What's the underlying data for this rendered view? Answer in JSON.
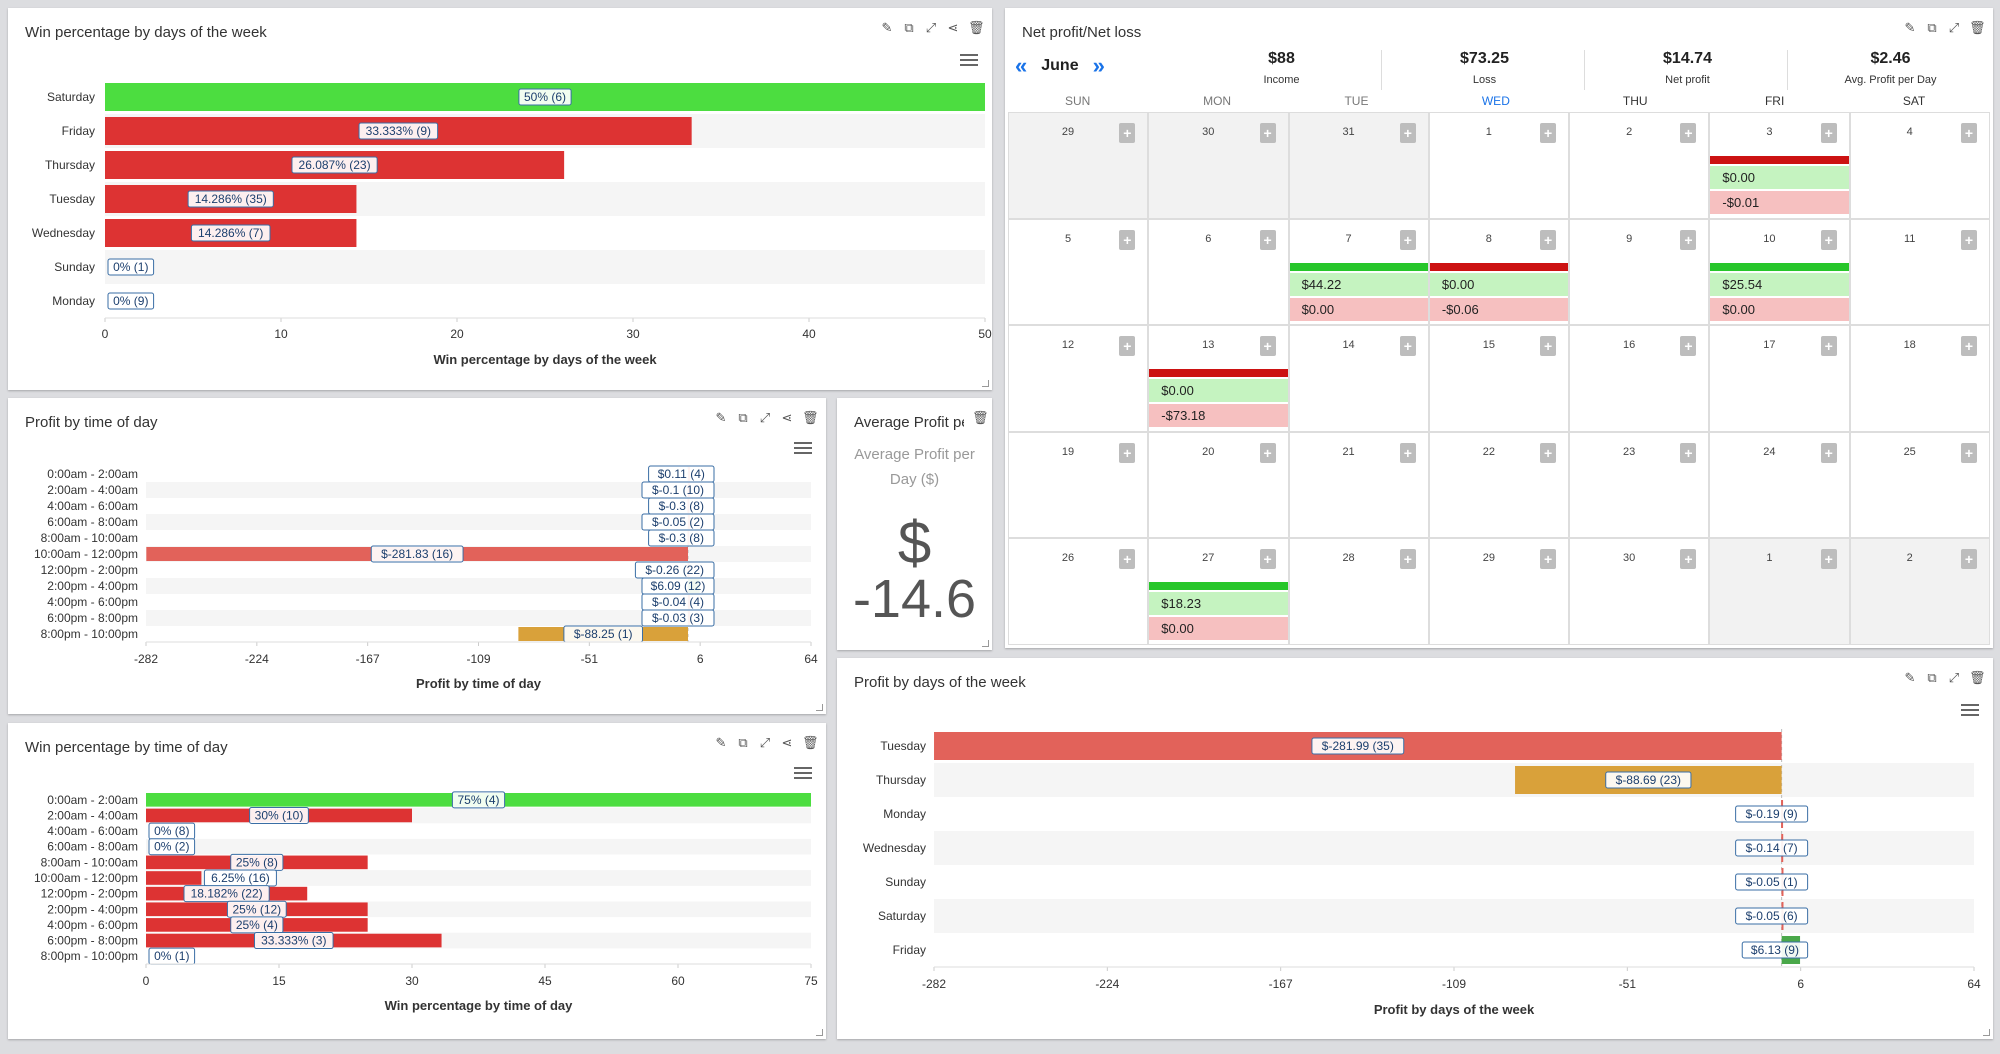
{
  "colors": {
    "win": "#4cdd40",
    "loss": "#dd3333",
    "orange": "#d9a13a",
    "salmon": "#e2625a",
    "green_small": "#4aa84a",
    "link": "#1a73e8"
  },
  "icons": [
    "pencil-icon",
    "copy-icon",
    "expand-icon",
    "share-icon",
    "trash-icon",
    "menu-icon",
    "add-note-icon",
    "double-chevron-left-icon",
    "double-chevron-right-icon"
  ],
  "panels": {
    "win_dow": {
      "title": "Win percentage by days of the week"
    },
    "net": {
      "title": "Net profit/Net loss"
    },
    "profit_tod": {
      "title": "Profit by time of day"
    },
    "avg": {
      "title": "Average Profit pe...",
      "label_line1": "Average Profit per",
      "label_line2": "Day ($)",
      "symbol": "$",
      "value": "-14.6"
    },
    "win_tod": {
      "title": "Win percentage by time of day"
    },
    "profit_dow": {
      "title": "Profit by days of the week"
    }
  },
  "calendar": {
    "month": "June",
    "summary": [
      {
        "value": "$88",
        "label": "Income"
      },
      {
        "value": "$73.25",
        "label": "Loss"
      },
      {
        "value": "$14.74",
        "label": "Net profit"
      },
      {
        "value": "$2.46",
        "label": "Avg. Profit per Day"
      }
    ],
    "dow": [
      "SUN",
      "MON",
      "TUE",
      "WED",
      "THU",
      "FRI",
      "SAT"
    ],
    "weeks": [
      [
        {
          "d": "29",
          "o": true
        },
        {
          "d": "30",
          "o": true
        },
        {
          "d": "31",
          "o": true
        },
        {
          "d": "1"
        },
        {
          "d": "2"
        },
        {
          "d": "3",
          "bar": "loss",
          "g": "$0.00",
          "r": "-$0.01"
        },
        {
          "d": "4"
        }
      ],
      [
        {
          "d": "5"
        },
        {
          "d": "6"
        },
        {
          "d": "7",
          "bar": "win",
          "g": "$44.22",
          "r": "$0.00"
        },
        {
          "d": "8",
          "bar": "loss",
          "g": "$0.00",
          "r": "-$0.06"
        },
        {
          "d": "9"
        },
        {
          "d": "10",
          "bar": "win",
          "g": "$25.54",
          "r": "$0.00"
        },
        {
          "d": "11"
        }
      ],
      [
        {
          "d": "12"
        },
        {
          "d": "13",
          "bar": "loss",
          "g": "$0.00",
          "r": "-$73.18"
        },
        {
          "d": "14"
        },
        {
          "d": "15"
        },
        {
          "d": "16"
        },
        {
          "d": "17"
        },
        {
          "d": "18"
        }
      ],
      [
        {
          "d": "19"
        },
        {
          "d": "20"
        },
        {
          "d": "21"
        },
        {
          "d": "22"
        },
        {
          "d": "23"
        },
        {
          "d": "24"
        },
        {
          "d": "25"
        }
      ],
      [
        {
          "d": "26"
        },
        {
          "d": "27",
          "bar": "win",
          "g": "$18.23",
          "r": "$0.00"
        },
        {
          "d": "28"
        },
        {
          "d": "29"
        },
        {
          "d": "30"
        },
        {
          "d": "1",
          "o": true
        },
        {
          "d": "2",
          "o": true
        }
      ]
    ]
  },
  "chart_data": [
    {
      "id": "win_dow",
      "type": "bar",
      "orientation": "horizontal",
      "xlabel": "Win percentage by days of the week",
      "xlim": [
        0,
        50
      ],
      "ticks": [
        "0",
        "10",
        "20",
        "30",
        "40",
        "50"
      ],
      "categories": [
        "Saturday",
        "Friday",
        "Thursday",
        "Tuesday",
        "Wednesday",
        "Sunday",
        "Monday"
      ],
      "values": [
        50,
        33.333,
        26.087,
        14.286,
        14.286,
        0,
        0
      ],
      "labels": [
        "50% (6)",
        "33.333% (9)",
        "26.087% (23)",
        "14.286% (35)",
        "14.286% (7)",
        "0% (1)",
        "0% (9)"
      ],
      "colors": [
        "win",
        "loss",
        "loss",
        "loss",
        "loss",
        "loss",
        "loss"
      ]
    },
    {
      "id": "profit_tod",
      "type": "bar",
      "orientation": "horizontal",
      "xlabel": "Profit by time of day",
      "xlim": [
        -282,
        64
      ],
      "ticks": [
        "-282",
        "-224",
        "-167",
        "-109",
        "-51",
        "6",
        "64"
      ],
      "categories": [
        "0:00am - 2:00am",
        "2:00am - 4:00am",
        "4:00am - 6:00am",
        "6:00am - 8:00am",
        "8:00am - 10:00am",
        "10:00am - 12:00pm",
        "12:00pm - 2:00pm",
        "2:00pm - 4:00pm",
        "4:00pm - 6:00pm",
        "6:00pm - 8:00pm",
        "8:00pm - 10:00pm"
      ],
      "values": [
        0.11,
        -0.1,
        -0.3,
        -0.05,
        -0.3,
        -281.83,
        -0.26,
        6.09,
        -0.04,
        -0.03,
        -88.25
      ],
      "labels": [
        "$0.11 (4)",
        "$-0.1 (10)",
        "$-0.3 (8)",
        "$-0.05 (2)",
        "$-0.3 (8)",
        "$-281.83 (16)",
        "$-0.26 (22)",
        "$6.09 (12)",
        "$-0.04 (4)",
        "$-0.03 (3)",
        "$-88.25 (1)"
      ],
      "colors": [
        "salmon",
        "salmon",
        "salmon",
        "salmon",
        "salmon",
        "salmon",
        "salmon",
        "green_small",
        "salmon",
        "salmon",
        "orange"
      ]
    },
    {
      "id": "win_tod",
      "type": "bar",
      "orientation": "horizontal",
      "xlabel": "Win percentage by time of day",
      "xlim": [
        0,
        75
      ],
      "ticks": [
        "0",
        "15",
        "30",
        "45",
        "60",
        "75"
      ],
      "categories": [
        "0:00am - 2:00am",
        "2:00am - 4:00am",
        "4:00am - 6:00am",
        "6:00am - 8:00am",
        "8:00am - 10:00am",
        "10:00am - 12:00pm",
        "12:00pm - 2:00pm",
        "2:00pm - 4:00pm",
        "4:00pm - 6:00pm",
        "6:00pm - 8:00pm",
        "8:00pm - 10:00pm"
      ],
      "values": [
        75,
        30,
        0,
        0,
        25,
        6.25,
        18.182,
        25,
        25,
        33.333,
        0
      ],
      "labels": [
        "75% (4)",
        "30% (10)",
        "0% (8)",
        "0% (2)",
        "25% (8)",
        "6.25% (16)",
        "18.182% (22)",
        "25% (12)",
        "25% (4)",
        "33.333% (3)",
        "0% (1)"
      ],
      "colors": [
        "win",
        "loss",
        "loss",
        "loss",
        "loss",
        "loss",
        "loss",
        "loss",
        "loss",
        "loss",
        "loss"
      ]
    },
    {
      "id": "profit_dow",
      "type": "bar",
      "orientation": "horizontal",
      "xlabel": "Profit by days of the week",
      "xlim": [
        -282,
        64
      ],
      "ticks": [
        "-282",
        "-224",
        "-167",
        "-109",
        "-51",
        "6",
        "64"
      ],
      "categories": [
        "Tuesday",
        "Thursday",
        "Monday",
        "Wednesday",
        "Sunday",
        "Saturday",
        "Friday"
      ],
      "values": [
        -281.99,
        -88.69,
        -0.19,
        -0.14,
        -0.05,
        -0.05,
        6.13
      ],
      "labels": [
        "$-281.99 (35)",
        "$-88.69 (23)",
        "$-0.19 (9)",
        "$-0.14 (7)",
        "$-0.05 (1)",
        "$-0.05 (6)",
        "$6.13 (9)"
      ],
      "colors": [
        "salmon",
        "orange",
        "salmon",
        "salmon",
        "salmon",
        "salmon",
        "green_small"
      ]
    }
  ]
}
